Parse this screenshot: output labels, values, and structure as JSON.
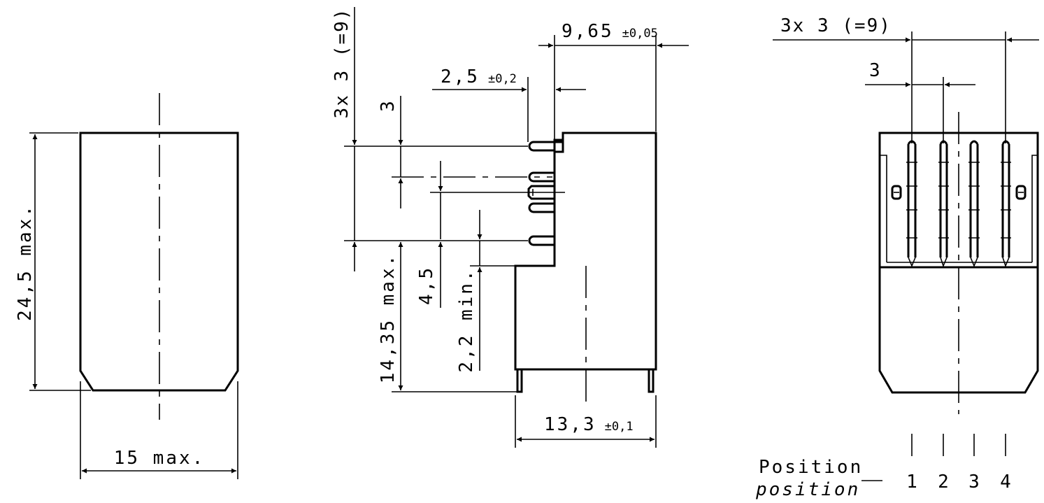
{
  "front_view": {
    "height_label": "24,5 max.",
    "width_label": "15 max."
  },
  "side_view": {
    "total_pitch_label": "3x 3 (=9)",
    "pitch_label": "3",
    "pin_width_value": "2,5",
    "pin_width_tol": "±0,2",
    "offset_value": "9,65",
    "offset_tol": "±0,05",
    "body_height_label": "14,35 max.",
    "pin_offset_label": "4,5",
    "standoff_label": "2,2 min.",
    "depth_value": "13,3",
    "depth_tol": "±0,1"
  },
  "pin_view": {
    "total_pitch_label": "3x 3 (=9)",
    "pitch_label": "3",
    "position_label": "Position",
    "position_label_alt": "position",
    "positions": [
      "1",
      "2",
      "3",
      "4"
    ]
  }
}
